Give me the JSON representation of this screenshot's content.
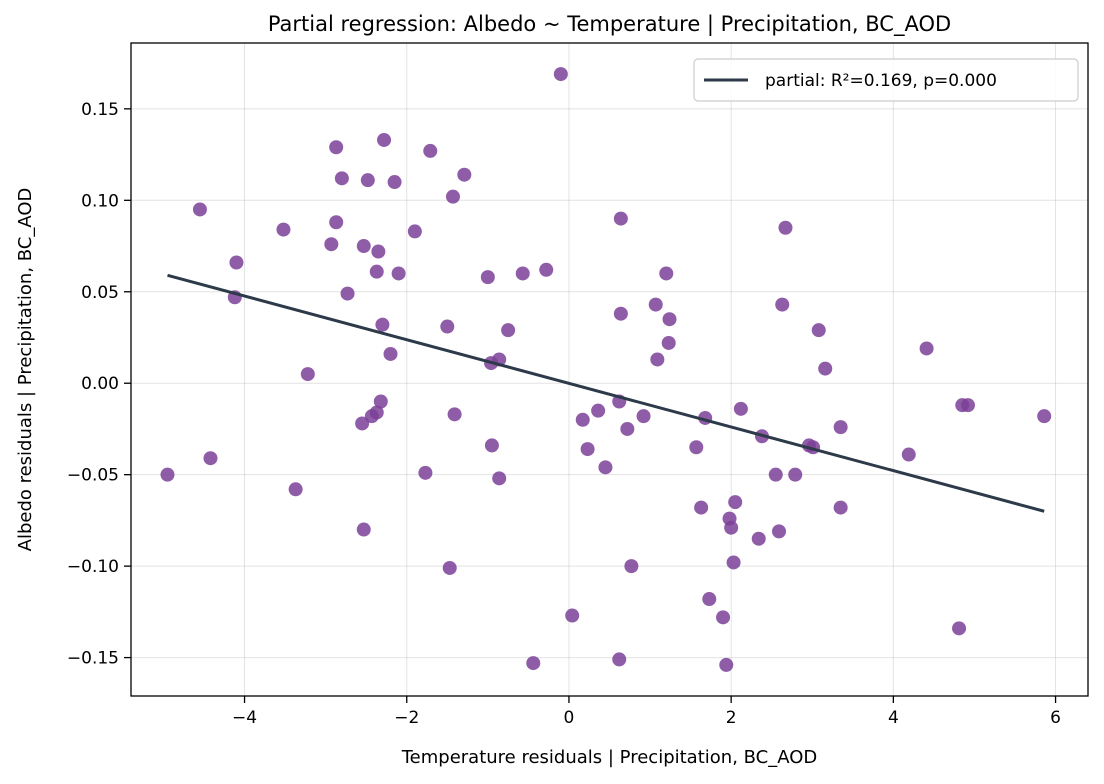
{
  "chart_data": {
    "type": "scatter",
    "title": "Partial regression: Albedo ~ Temperature | Precipitation, BC_AOD",
    "xlabel": "Temperature residuals | Precipitation, BC_AOD",
    "ylabel": "Albedo residuals | Precipitation, BC_AOD",
    "xlim": [
      -5.4,
      6.4
    ],
    "ylim": [
      -0.171,
      0.186
    ],
    "xticks": [
      -4,
      -2,
      0,
      2,
      4,
      6
    ],
    "xtick_labels": [
      "−4",
      "−2",
      "0",
      "2",
      "4",
      "6"
    ],
    "yticks": [
      -0.15,
      -0.1,
      -0.05,
      0.0,
      0.05,
      0.1,
      0.15
    ],
    "ytick_labels": [
      "−0.15",
      "−0.10",
      "−0.05",
      "0.00",
      "0.05",
      "0.10",
      "0.15"
    ],
    "grid": true,
    "legend_position": "top-right",
    "colors": {
      "points": "#7b3f98",
      "line": "#2d3a4a"
    },
    "points": [
      {
        "x": -0.1,
        "y": 0.169
      },
      {
        "x": -4.55,
        "y": 0.095
      },
      {
        "x": -4.1,
        "y": 0.066
      },
      {
        "x": -4.12,
        "y": 0.047
      },
      {
        "x": -4.95,
        "y": -0.05
      },
      {
        "x": -4.42,
        "y": -0.041
      },
      {
        "x": -3.52,
        "y": 0.084
      },
      {
        "x": -3.37,
        "y": -0.058
      },
      {
        "x": -3.22,
        "y": 0.005
      },
      {
        "x": -2.87,
        "y": 0.129
      },
      {
        "x": -2.8,
        "y": 0.112
      },
      {
        "x": -2.87,
        "y": 0.088
      },
      {
        "x": -2.93,
        "y": 0.076
      },
      {
        "x": -2.73,
        "y": 0.049
      },
      {
        "x": -2.53,
        "y": 0.075
      },
      {
        "x": -2.48,
        "y": 0.111
      },
      {
        "x": -2.28,
        "y": 0.133
      },
      {
        "x": -2.15,
        "y": 0.11
      },
      {
        "x": -2.35,
        "y": 0.072
      },
      {
        "x": -2.37,
        "y": 0.061
      },
      {
        "x": -2.1,
        "y": 0.06
      },
      {
        "x": -2.3,
        "y": 0.032
      },
      {
        "x": -2.2,
        "y": 0.016
      },
      {
        "x": -2.32,
        "y": -0.01
      },
      {
        "x": -2.37,
        "y": -0.016
      },
      {
        "x": -2.43,
        "y": -0.018
      },
      {
        "x": -2.55,
        "y": -0.022
      },
      {
        "x": -2.53,
        "y": -0.08
      },
      {
        "x": -1.71,
        "y": 0.127
      },
      {
        "x": -1.9,
        "y": 0.083
      },
      {
        "x": -1.29,
        "y": 0.114
      },
      {
        "x": -1.43,
        "y": 0.102
      },
      {
        "x": -1.5,
        "y": 0.031
      },
      {
        "x": -1.41,
        "y": -0.017
      },
      {
        "x": -1.77,
        "y": -0.049
      },
      {
        "x": -1.47,
        "y": -0.101
      },
      {
        "x": -1.0,
        "y": 0.058
      },
      {
        "x": -0.57,
        "y": 0.06
      },
      {
        "x": -0.28,
        "y": 0.062
      },
      {
        "x": -0.75,
        "y": 0.029
      },
      {
        "x": -0.96,
        "y": 0.011
      },
      {
        "x": -0.86,
        "y": 0.013
      },
      {
        "x": -0.95,
        "y": -0.034
      },
      {
        "x": -0.86,
        "y": -0.052
      },
      {
        "x": -0.44,
        "y": -0.153
      },
      {
        "x": 0.64,
        "y": 0.09
      },
      {
        "x": 0.64,
        "y": 0.038
      },
      {
        "x": 0.62,
        "y": -0.01
      },
      {
        "x": 0.36,
        "y": -0.015
      },
      {
        "x": 0.17,
        "y": -0.02
      },
      {
        "x": 0.23,
        "y": -0.036
      },
      {
        "x": 0.45,
        "y": -0.046
      },
      {
        "x": 0.72,
        "y": -0.025
      },
      {
        "x": 0.92,
        "y": -0.018
      },
      {
        "x": 0.77,
        "y": -0.1
      },
      {
        "x": 0.04,
        "y": -0.127
      },
      {
        "x": 0.62,
        "y": -0.151
      },
      {
        "x": 1.2,
        "y": 0.06
      },
      {
        "x": 1.07,
        "y": 0.043
      },
      {
        "x": 1.24,
        "y": 0.035
      },
      {
        "x": 1.23,
        "y": 0.022
      },
      {
        "x": 1.09,
        "y": 0.013
      },
      {
        "x": 1.68,
        "y": -0.019
      },
      {
        "x": 1.57,
        "y": -0.035
      },
      {
        "x": 1.63,
        "y": -0.068
      },
      {
        "x": 1.73,
        "y": -0.118
      },
      {
        "x": 1.9,
        "y": -0.128
      },
      {
        "x": 1.94,
        "y": -0.154
      },
      {
        "x": 1.98,
        "y": -0.074
      },
      {
        "x": 2.0,
        "y": -0.079
      },
      {
        "x": 2.03,
        "y": -0.098
      },
      {
        "x": 2.05,
        "y": -0.065
      },
      {
        "x": 2.12,
        "y": -0.014
      },
      {
        "x": 2.38,
        "y": -0.029
      },
      {
        "x": 2.34,
        "y": -0.085
      },
      {
        "x": 2.55,
        "y": -0.05
      },
      {
        "x": 2.59,
        "y": -0.081
      },
      {
        "x": 2.67,
        "y": 0.085
      },
      {
        "x": 2.63,
        "y": 0.043
      },
      {
        "x": 2.79,
        "y": -0.05
      },
      {
        "x": 2.96,
        "y": -0.034
      },
      {
        "x": 3.01,
        "y": -0.035
      },
      {
        "x": 3.08,
        "y": 0.029
      },
      {
        "x": 3.16,
        "y": 0.008
      },
      {
        "x": 3.35,
        "y": -0.024
      },
      {
        "x": 3.35,
        "y": -0.068
      },
      {
        "x": 4.19,
        "y": -0.039
      },
      {
        "x": 4.41,
        "y": 0.019
      },
      {
        "x": 4.81,
        "y": -0.134
      },
      {
        "x": 4.85,
        "y": -0.012
      },
      {
        "x": 4.92,
        "y": -0.012
      },
      {
        "x": 5.86,
        "y": -0.018
      }
    ],
    "fit_line": {
      "x": [
        -4.95,
        5.86
      ],
      "y": [
        0.059,
        -0.07
      ]
    },
    "legend": [
      {
        "label": "partial: R²=0.169, p=0.000",
        "marker": "line"
      }
    ]
  }
}
